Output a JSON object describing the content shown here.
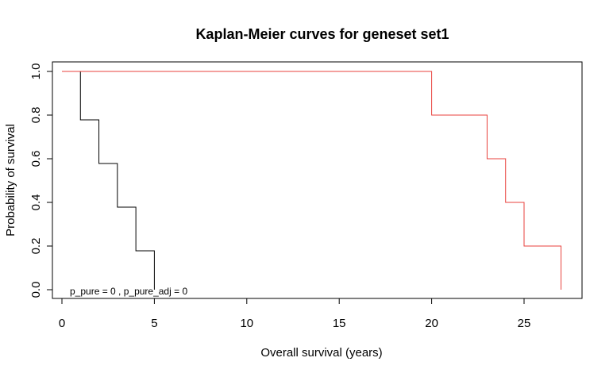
{
  "chart_data": {
    "type": "line",
    "title": "Kaplan-Meier curves for geneset  set1",
    "xlabel": "Overall survival (years)",
    "ylabel": "Probability of survival",
    "xlim": [
      0,
      28
    ],
    "ylim": [
      0,
      1
    ],
    "xticks": [
      0,
      5,
      10,
      15,
      20,
      25
    ],
    "yticks": [
      0.0,
      0.2,
      0.4,
      0.6,
      0.8,
      1.0
    ],
    "xtick_labels": [
      "0",
      "5",
      "10",
      "15",
      "20",
      "25"
    ],
    "ytick_labels": [
      "0.0",
      "0.2",
      "0.4",
      "0.6",
      "0.8",
      "1.0"
    ],
    "grid": false,
    "step": true,
    "annotation": "p_pure =  0 , p_pure_adj =  0",
    "series": [
      {
        "color": "#000000",
        "x": [
          0,
          1,
          2,
          3,
          4,
          5
        ],
        "y": [
          1.0,
          0.778,
          0.578,
          0.378,
          0.178,
          0.0
        ]
      },
      {
        "color": "#e8413c",
        "x": [
          0,
          20,
          23,
          24,
          25,
          27
        ],
        "y": [
          1.0,
          0.8,
          0.6,
          0.4,
          0.2,
          0.0
        ]
      }
    ]
  }
}
